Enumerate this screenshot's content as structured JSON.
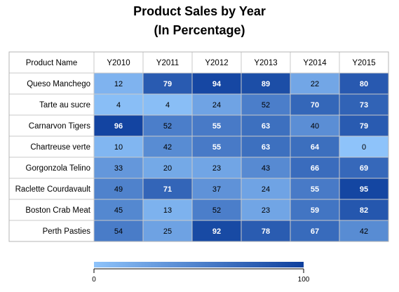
{
  "chart_data": {
    "type": "heatmap",
    "title": "Product Sales by Year",
    "subtitle": "(In Percentage)",
    "corner_header": "Product Name",
    "columns": [
      "Y2010",
      "Y2011",
      "Y2012",
      "Y2013",
      "Y2014",
      "Y2015"
    ],
    "rows": [
      "Queso Manchego",
      "Tarte au sucre",
      "Carnarvon Tigers",
      "Chartreuse verte",
      "Gorgonzola Telino",
      "Raclette Courdavault",
      "Boston Crab Meat",
      "Perth Pasties"
    ],
    "values": [
      [
        12,
        79,
        94,
        89,
        22,
        80
      ],
      [
        4,
        4,
        24,
        52,
        70,
        73
      ],
      [
        96,
        52,
        55,
        63,
        40,
        79
      ],
      [
        10,
        42,
        55,
        63,
        64,
        0
      ],
      [
        33,
        20,
        23,
        43,
        66,
        69
      ],
      [
        49,
        71,
        37,
        24,
        55,
        95
      ],
      [
        45,
        13,
        52,
        23,
        59,
        82
      ],
      [
        54,
        25,
        92,
        78,
        67,
        42
      ]
    ],
    "color_scale": {
      "min": 0,
      "max": 100,
      "min_color": "#8ec3fa",
      "max_color": "#0e3f9d"
    },
    "legend": {
      "position": "bottom",
      "min_label": "0",
      "max_label": "100"
    }
  }
}
